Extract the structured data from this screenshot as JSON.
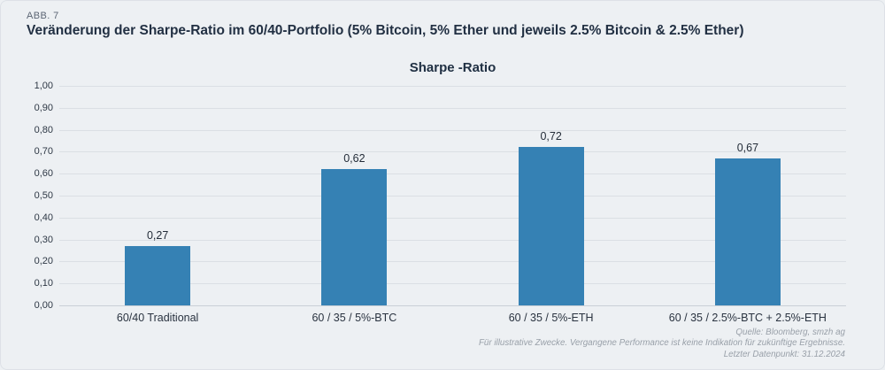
{
  "header": {
    "figure_label": "ABB. 7",
    "title": "Veränderung der Sharpe-Ratio im 60/40-Portfolio (5% Bitcoin, 5% Ether und jeweils 2.5% Bitcoin & 2.5% Ether)"
  },
  "chart_data": {
    "type": "bar",
    "title": "Sharpe -Ratio",
    "categories": [
      "60/40 Traditional",
      "60 / 35 / 5%-BTC",
      "60 / 35 / 5%-ETH",
      "60 / 35 / 2.5%-BTC + 2.5%-ETH"
    ],
    "values": [
      0.27,
      0.62,
      0.72,
      0.67
    ],
    "value_labels": [
      "0,27",
      "0,62",
      "0,72",
      "0,67"
    ],
    "ylim": [
      0,
      1
    ],
    "ytick_labels_top_to_bottom": [
      "1,00",
      "0,90",
      "0,80",
      "0,70",
      "0,60",
      "0,50",
      "0,40",
      "0,30",
      "0,20",
      "0,10",
      "0,00"
    ],
    "grid": "horizontal",
    "legend_position": "none",
    "bar_color": "#3581B4"
  },
  "footer": {
    "line1": "Quelle: Bloomberg, smzh ag",
    "line2": "Für illustrative Zwecke. Vergangene Performance ist keine Indikation für zukünftige Ergebnisse.",
    "line3": "Letzter Datenpunkt: 31.12.2024"
  },
  "colors": {
    "background": "#EDF0F3",
    "gridline": "#DBDFE4",
    "bar": "#3581B4",
    "title_text": "#223043",
    "muted_text": "#5B6574",
    "footer_text": "#99A0A9"
  }
}
